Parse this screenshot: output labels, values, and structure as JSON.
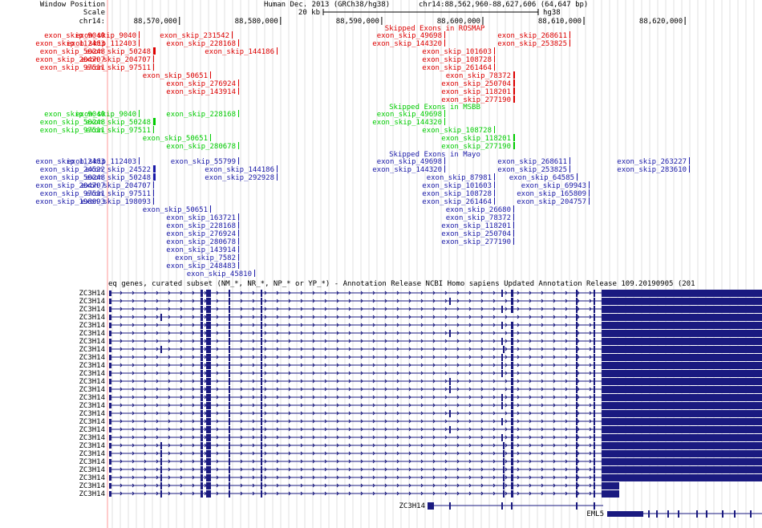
{
  "header": {
    "window_position_label": "Window Position",
    "scale_label": "Scale",
    "chrom_label": "chr14:",
    "assembly": "Human Dec. 2013 (GRCh38/hg38)",
    "position": "chr14:88,562,960-88,627,606 (64,647 bp)",
    "scale_text": "20 kb",
    "scale_db": "hg38",
    "ticks": [
      "88,570,000",
      "88,580,000",
      "88,590,000",
      "88,600,000",
      "88,610,000",
      "88,620,000"
    ]
  },
  "colors": {
    "rosmap": "#dd0000",
    "msbb": "#00cc00",
    "mayo": "#1a1aa8",
    "gene": "#1a1a80",
    "grid": "#e0e0e0",
    "highlight": "#ff9999"
  },
  "tracks": [
    {
      "id": "rosmap",
      "title": "Skipped Exons in ROSMAP",
      "left_labels": [
        "exon_skip_9040",
        "exon_skip_112403",
        "exon_skip_50248",
        "exon_skip_204707",
        "exon_skip_97511"
      ],
      "features": [
        {
          "label": "exon_skip_9040",
          "pos": 88566000,
          "row": 0,
          "w": 1
        },
        {
          "label": "exon_skip_231542",
          "pos": 88575200,
          "row": 0,
          "w": 1
        },
        {
          "label": "exon_skip_49698",
          "pos": 88596200,
          "row": 0,
          "w": 1
        },
        {
          "label": "exon_skip_268611",
          "pos": 88608600,
          "row": 0,
          "w": 1
        },
        {
          "label": "exon_skip_112403",
          "pos": 88566000,
          "row": 1,
          "w": 1
        },
        {
          "label": "exon_skip_228168",
          "pos": 88575800,
          "row": 1,
          "w": 1
        },
        {
          "label": "exon_skip_144320",
          "pos": 88596200,
          "row": 1,
          "w": 1
        },
        {
          "label": "exon_skip_253825",
          "pos": 88608600,
          "row": 1,
          "w": 1
        },
        {
          "label": "exon_skip_50248",
          "pos": 88567400,
          "row": 2,
          "w": 3
        },
        {
          "label": "exon_skip_144186",
          "pos": 88579600,
          "row": 2,
          "w": 1
        },
        {
          "label": "exon_skip_101603",
          "pos": 88601100,
          "row": 2,
          "w": 1
        },
        {
          "label": "exon_skip_204707",
          "pos": 88567400,
          "row": 3,
          "w": 1
        },
        {
          "label": "exon_skip_108728",
          "pos": 88601100,
          "row": 3,
          "w": 1
        },
        {
          "label": "exon_skip_97511",
          "pos": 88567400,
          "row": 4,
          "w": 1
        },
        {
          "label": "exon_skip_261464",
          "pos": 88601100,
          "row": 4,
          "w": 1
        },
        {
          "label": "exon_skip_50651",
          "pos": 88573000,
          "row": 5,
          "w": 1
        },
        {
          "label": "exon_skip_78372",
          "pos": 88603000,
          "row": 5,
          "w": 2
        },
        {
          "label": "exon_skip_276924",
          "pos": 88575800,
          "row": 6,
          "w": 1
        },
        {
          "label": "exon_skip_250704",
          "pos": 88603000,
          "row": 6,
          "w": 2
        },
        {
          "label": "exon_skip_143914",
          "pos": 88575800,
          "row": 7,
          "w": 1
        },
        {
          "label": "exon_skip_118201",
          "pos": 88603000,
          "row": 7,
          "w": 2
        },
        {
          "label": "exon_skip_277190",
          "pos": 88603000,
          "row": 8,
          "w": 2
        }
      ]
    },
    {
      "id": "msbb",
      "title": "Skipped Exons in MSBB",
      "left_labels": [
        "exon_skip_9040",
        "exon_skip_50248",
        "exon_skip_97511"
      ],
      "features": [
        {
          "label": "exon_skip_9040",
          "pos": 88566000,
          "row": 0,
          "w": 1
        },
        {
          "label": "exon_skip_228168",
          "pos": 88575800,
          "row": 0,
          "w": 1
        },
        {
          "label": "exon_skip_49698",
          "pos": 88596200,
          "row": 0,
          "w": 1
        },
        {
          "label": "exon_skip_50248",
          "pos": 88567400,
          "row": 1,
          "w": 3
        },
        {
          "label": "exon_skip_144320",
          "pos": 88596200,
          "row": 1,
          "w": 1
        },
        {
          "label": "exon_skip_97511",
          "pos": 88567400,
          "row": 2,
          "w": 1
        },
        {
          "label": "exon_skip_108728",
          "pos": 88601100,
          "row": 2,
          "w": 1
        },
        {
          "label": "exon_skip_50651",
          "pos": 88573000,
          "row": 3,
          "w": 1
        },
        {
          "label": "exon_skip_118201",
          "pos": 88603000,
          "row": 3,
          "w": 2
        },
        {
          "label": "exon_skip_280678",
          "pos": 88575800,
          "row": 4,
          "w": 1
        },
        {
          "label": "exon_skip_277190",
          "pos": 88603000,
          "row": 4,
          "w": 2
        }
      ]
    },
    {
      "id": "mayo",
      "title": "Skipped Exons in Mayo",
      "left_labels": [
        "exon_skip_112403",
        "exon_skip_24522",
        "exon_skip_50248",
        "exon_skip_204707",
        "exon_skip_97511",
        "exon_skip_198093"
      ],
      "features": [
        {
          "label": "exon_skip_112403",
          "pos": 88566000,
          "row": 0,
          "w": 1
        },
        {
          "label": "exon_skip_55799",
          "pos": 88575800,
          "row": 0,
          "w": 1
        },
        {
          "label": "exon_skip_49698",
          "pos": 88596200,
          "row": 0,
          "w": 1
        },
        {
          "label": "exon_skip_268611",
          "pos": 88608600,
          "row": 0,
          "w": 1
        },
        {
          "label": "exon_skip_263227",
          "pos": 88620400,
          "row": 0,
          "w": 1
        },
        {
          "label": "exon_skip_24522",
          "pos": 88567400,
          "row": 1,
          "w": 3
        },
        {
          "label": "exon_skip_144186",
          "pos": 88579600,
          "row": 1,
          "w": 1
        },
        {
          "label": "exon_skip_144320",
          "pos": 88596200,
          "row": 1,
          "w": 1
        },
        {
          "label": "exon_skip_253825",
          "pos": 88608600,
          "row": 1,
          "w": 1
        },
        {
          "label": "exon_skip_283610",
          "pos": 88620400,
          "row": 1,
          "w": 1
        },
        {
          "label": "exon_skip_50248",
          "pos": 88567400,
          "row": 2,
          "w": 3
        },
        {
          "label": "exon_skip_292928",
          "pos": 88579600,
          "row": 2,
          "w": 1
        },
        {
          "label": "exon_skip_87981",
          "pos": 88601100,
          "row": 2,
          "w": 1
        },
        {
          "label": "exon_skip_64585",
          "pos": 88609300,
          "row": 2,
          "w": 1
        },
        {
          "label": "exon_skip_204707",
          "pos": 88567400,
          "row": 3,
          "w": 1
        },
        {
          "label": "exon_skip_101603",
          "pos": 88601100,
          "row": 3,
          "w": 1
        },
        {
          "label": "exon_skip_69943",
          "pos": 88610500,
          "row": 3,
          "w": 1
        },
        {
          "label": "exon_skip_97511",
          "pos": 88567400,
          "row": 4,
          "w": 1
        },
        {
          "label": "exon_skip_108728",
          "pos": 88601100,
          "row": 4,
          "w": 1
        },
        {
          "label": "exon_skip_165809",
          "pos": 88610500,
          "row": 4,
          "w": 1
        },
        {
          "label": "exon_skip_198093",
          "pos": 88567400,
          "row": 5,
          "w": 1
        },
        {
          "label": "exon_skip_261464",
          "pos": 88601100,
          "row": 5,
          "w": 1
        },
        {
          "label": "exon_skip_204757",
          "pos": 88610500,
          "row": 5,
          "w": 1
        },
        {
          "label": "exon_skip_50651",
          "pos": 88573000,
          "row": 6,
          "w": 1
        },
        {
          "label": "exon_skip_26680",
          "pos": 88603000,
          "row": 6,
          "w": 1
        },
        {
          "label": "exon_skip_163721",
          "pos": 88575800,
          "row": 7,
          "w": 1
        },
        {
          "label": "exon_skip_78372",
          "pos": 88603000,
          "row": 7,
          "w": 1
        },
        {
          "label": "exon_skip_228168",
          "pos": 88575800,
          "row": 8,
          "w": 1
        },
        {
          "label": "exon_skip_118201",
          "pos": 88603000,
          "row": 8,
          "w": 1
        },
        {
          "label": "exon_skip_276924",
          "pos": 88575800,
          "row": 9,
          "w": 1
        },
        {
          "label": "exon_skip_250704",
          "pos": 88603000,
          "row": 9,
          "w": 1
        },
        {
          "label": "exon_skip_280678",
          "pos": 88575800,
          "row": 10,
          "w": 1
        },
        {
          "label": "exon_skip_277190",
          "pos": 88603000,
          "row": 10,
          "w": 1
        },
        {
          "label": "exon_skip_143914",
          "pos": 88575800,
          "row": 11,
          "w": 1
        },
        {
          "label": "exon_skip_7582",
          "pos": 88575800,
          "row": 12,
          "w": 1
        },
        {
          "label": "exon_skip_248483",
          "pos": 88575800,
          "row": 13,
          "w": 1
        },
        {
          "label": "exon_skip_45810",
          "pos": 88577400,
          "row": 14,
          "w": 1
        }
      ]
    }
  ],
  "refseq": {
    "title": "eq genes, curated subset (NM_*, NR_*, NP_* or YP_*) - Annotation Release NCBI Homo sapiens Updated Annotation Release 109.20190905 (201",
    "transcripts": [
      {
        "name": "ZC3H14",
        "v": "a"
      },
      {
        "name": "ZC3H14",
        "v": "b"
      },
      {
        "name": "ZC3H14",
        "v": "a"
      },
      {
        "name": "ZC3H14",
        "v": "c"
      },
      {
        "name": "ZC3H14",
        "v": "a"
      },
      {
        "name": "ZC3H14",
        "v": "b"
      },
      {
        "name": "ZC3H14",
        "v": "a"
      },
      {
        "name": "ZC3H14",
        "v": "d"
      },
      {
        "name": "ZC3H14",
        "v": "a"
      },
      {
        "name": "ZC3H14",
        "v": "a"
      },
      {
        "name": "ZC3H14",
        "v": "a"
      },
      {
        "name": "ZC3H14",
        "v": "b"
      },
      {
        "name": "ZC3H14",
        "v": "b"
      },
      {
        "name": "ZC3H14",
        "v": "a"
      },
      {
        "name": "ZC3H14",
        "v": "a"
      },
      {
        "name": "ZC3H14",
        "v": "b"
      },
      {
        "name": "ZC3H14",
        "v": "a"
      },
      {
        "name": "ZC3H14",
        "v": "b"
      },
      {
        "name": "ZC3H14",
        "v": "a"
      },
      {
        "name": "ZC3H14",
        "v": "d"
      },
      {
        "name": "ZC3H14",
        "v": "d"
      },
      {
        "name": "ZC3H14",
        "v": "d"
      },
      {
        "name": "ZC3H14",
        "v": "d"
      },
      {
        "name": "ZC3H14",
        "v": "d"
      },
      {
        "name": "ZC3H14",
        "v": "s"
      },
      {
        "name": "ZC3H14",
        "v": "s"
      }
    ],
    "extra_genes": [
      {
        "name": "ZC3H14",
        "kind": "short"
      },
      {
        "name": "EML5",
        "kind": "eml5"
      }
    ]
  }
}
